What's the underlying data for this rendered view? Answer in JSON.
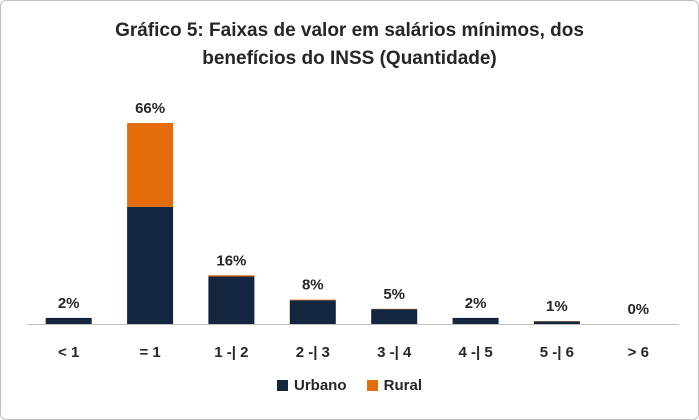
{
  "chart_data": {
    "type": "bar",
    "stacked": true,
    "title": [
      "Gráfico 5: Faixas de valor em salários mínimos, dos",
      "benefícios do INSS (Quantidade)"
    ],
    "categories": [
      "< 1",
      "= 1",
      "1 -| 2",
      "2 -| 3",
      "3 -| 4",
      "4 -| 5",
      "5 -| 6",
      "> 6"
    ],
    "data_labels": [
      "2%",
      "66%",
      "16%",
      "8%",
      "5%",
      "2%",
      "1%",
      "0%"
    ],
    "series": [
      {
        "name": "Urbano",
        "color": "#13253f",
        "values": [
          2.0,
          38.5,
          15.6,
          7.8,
          4.9,
          2.0,
          0.9,
          0.0
        ]
      },
      {
        "name": "Rural",
        "color": "#e46c0a",
        "values": [
          0.0,
          27.5,
          0.4,
          0.2,
          0.1,
          0.0,
          0.1,
          0.0
        ]
      }
    ],
    "ylim": [
      0,
      66
    ],
    "grid": false,
    "legend_position": "bottom"
  }
}
